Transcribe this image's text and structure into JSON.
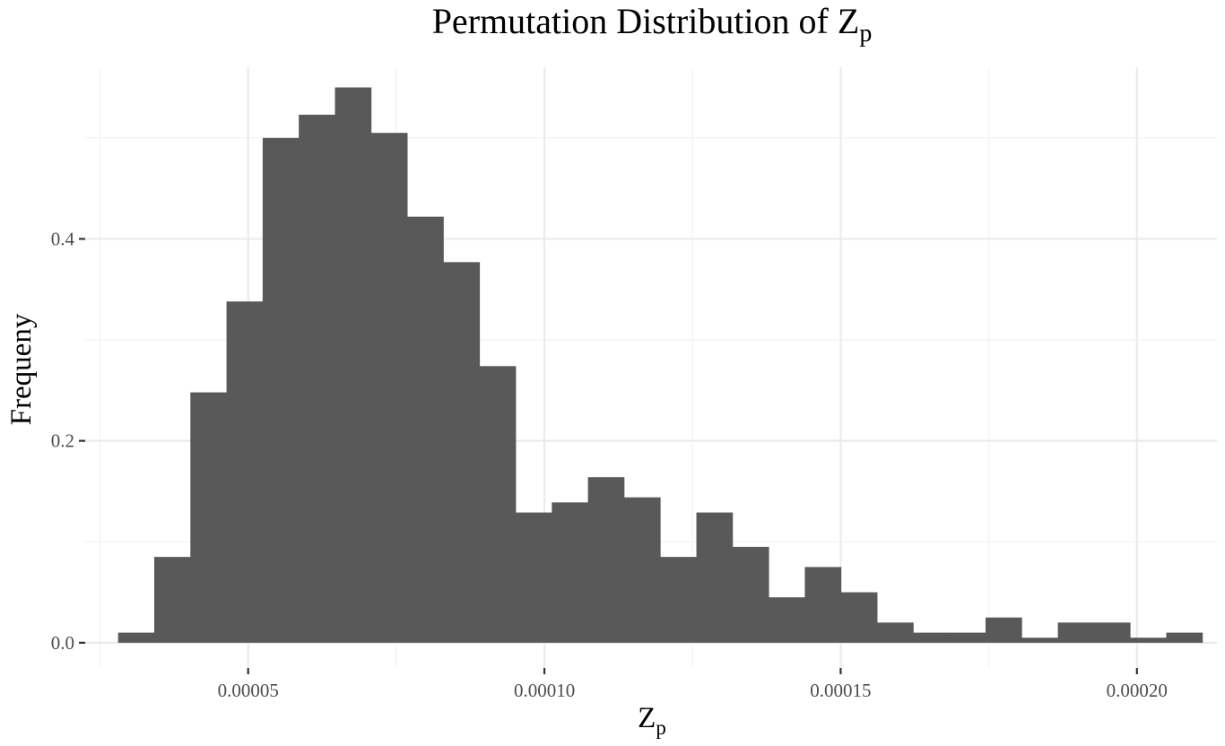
{
  "title": {
    "text": "Permutation Distribution of Z",
    "subscript": "p"
  },
  "xlabel": {
    "text": "Z",
    "subscript": "p"
  },
  "ylabel": "Frequeny",
  "colors": {
    "bar": "#595959",
    "background": "#ffffff",
    "grid_major": "#ebebeb",
    "grid_minor": "#f2f2f2",
    "tick_text": "#4d4d4d"
  },
  "chart_data": {
    "type": "bar",
    "title": "Permutation Distribution of Zp",
    "xlabel": "Zp",
    "ylabel": "Frequeny",
    "grid": true,
    "legend": "none",
    "x_ticks": [
      5e-05,
      0.0001,
      0.00015,
      0.0002
    ],
    "x_tick_labels": [
      "0.00005",
      "0.00010",
      "0.00015",
      "0.00020"
    ],
    "y_ticks": [
      0,
      0.2,
      0.4
    ],
    "y_tick_labels": [
      "0.0",
      "0.2",
      "0.4"
    ],
    "xlim": [
      2.25e-05,
      0.0002135
    ],
    "ylim": [
      -0.025,
      0.57
    ],
    "bin_width": 6.1e-06,
    "bin_starts": [
      2.805e-05,
      3.415e-05,
      4.025e-05,
      4.635e-05,
      5.245e-05,
      5.855e-05,
      6.465e-05,
      7.075e-05,
      7.685e-05,
      8.295e-05,
      8.905e-05,
      9.515e-05,
      0.00010125,
      0.00010735,
      0.00011345,
      0.00011955,
      0.00012565,
      0.00013175,
      0.00013785,
      0.00014395,
      0.00015005,
      0.00015615,
      0.00016225,
      0.00016835,
      0.00017445,
      0.00018055,
      0.00018665,
      0.00019275,
      0.00019885,
      0.00020495
    ],
    "values": [
      0.01,
      0.085,
      0.248,
      0.338,
      0.5,
      0.523,
      0.55,
      0.505,
      0.422,
      0.377,
      0.274,
      0.129,
      0.139,
      0.164,
      0.144,
      0.085,
      0.129,
      0.095,
      0.045,
      0.075,
      0.05,
      0.02,
      0.01,
      0.01,
      0.025,
      0.005,
      0.02,
      0.02,
      0.005,
      0.01
    ]
  }
}
